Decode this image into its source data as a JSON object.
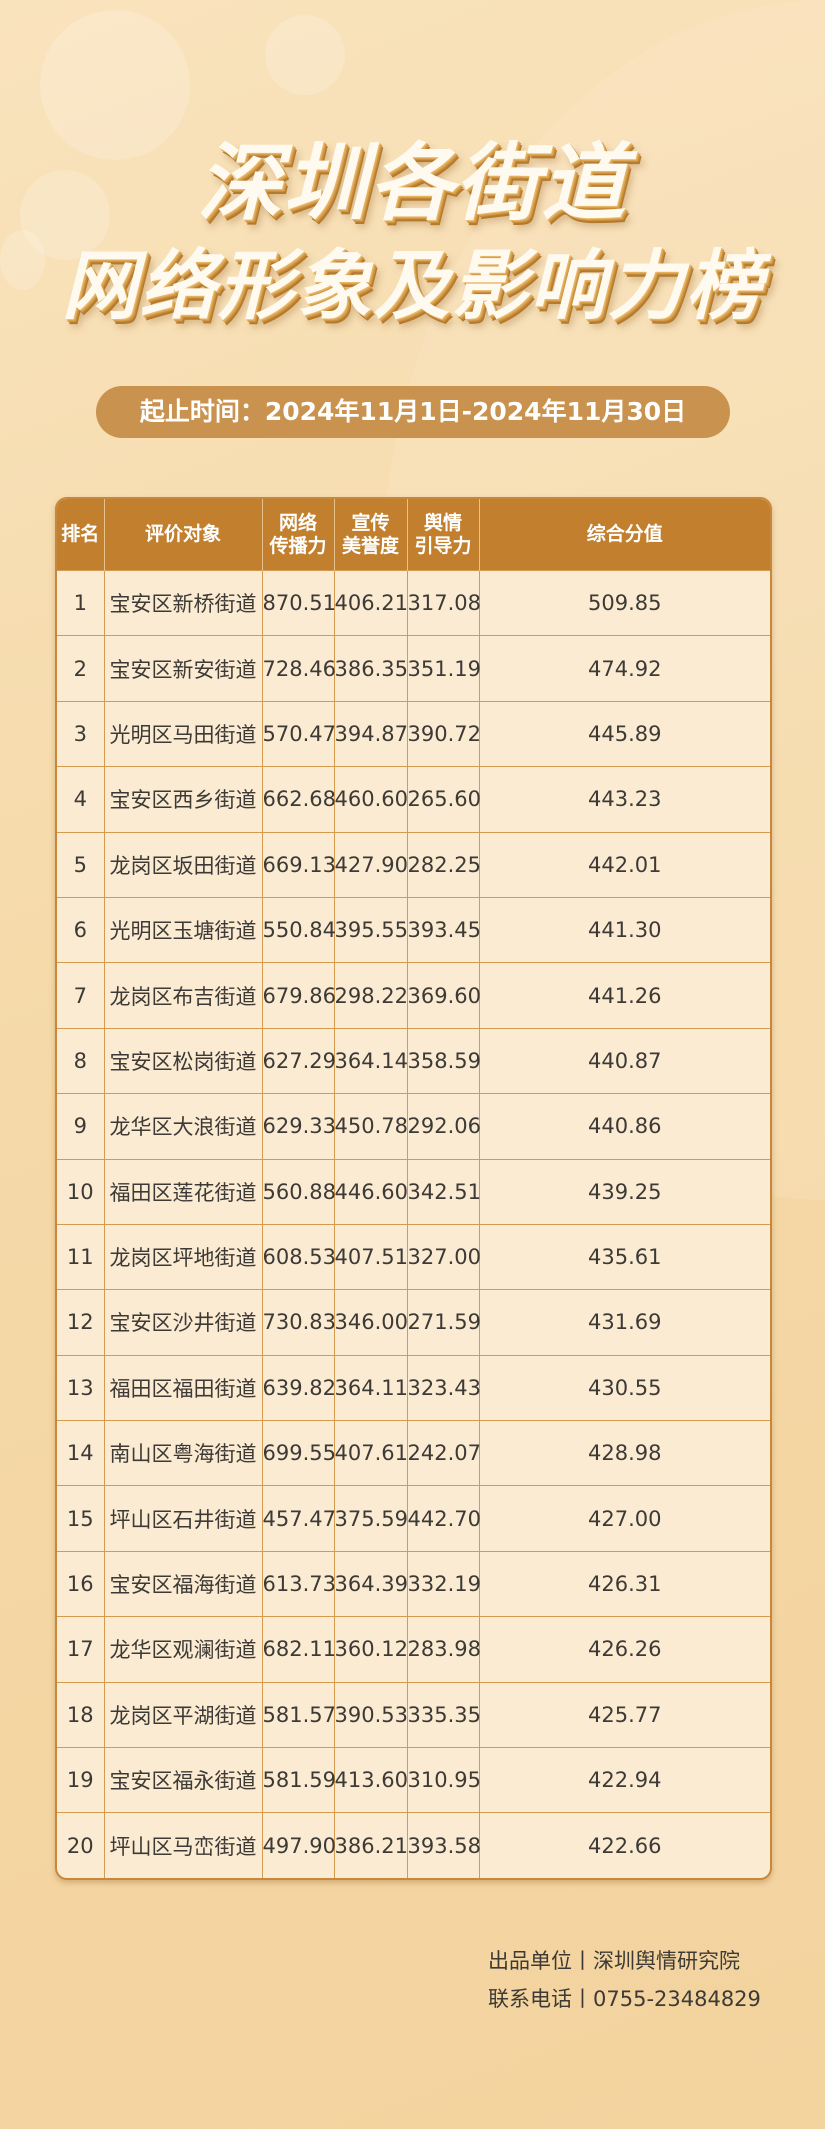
{
  "title": {
    "line1": "深圳各街道",
    "line2": "网络形象及影响力榜"
  },
  "period": "起止时间：2024年11月1日-2024年11月30日",
  "table": {
    "headers": [
      "排名",
      "评价对象",
      "网络\n传播力",
      "宣传\n美誉度",
      "舆情\n引导力",
      "综合分值"
    ],
    "rows": [
      [
        "1",
        "宝安区新桥街道",
        "870.51",
        "406.21",
        "317.08",
        "509.85"
      ],
      [
        "2",
        "宝安区新安街道",
        "728.46",
        "386.35",
        "351.19",
        "474.92"
      ],
      [
        "3",
        "光明区马田街道",
        "570.47",
        "394.87",
        "390.72",
        "445.89"
      ],
      [
        "4",
        "宝安区西乡街道",
        "662.68",
        "460.60",
        "265.60",
        "443.23"
      ],
      [
        "5",
        "龙岗区坂田街道",
        "669.13",
        "427.90",
        "282.25",
        "442.01"
      ],
      [
        "6",
        "光明区玉塘街道",
        "550.84",
        "395.55",
        "393.45",
        "441.30"
      ],
      [
        "7",
        "龙岗区布吉街道",
        "679.86",
        "298.22",
        "369.60",
        "441.26"
      ],
      [
        "8",
        "宝安区松岗街道",
        "627.29",
        "364.14",
        "358.59",
        "440.87"
      ],
      [
        "9",
        "龙华区大浪街道",
        "629.33",
        "450.78",
        "292.06",
        "440.86"
      ],
      [
        "10",
        "福田区莲花街道",
        "560.88",
        "446.60",
        "342.51",
        "439.25"
      ],
      [
        "11",
        "龙岗区坪地街道",
        "608.53",
        "407.51",
        "327.00",
        "435.61"
      ],
      [
        "12",
        "宝安区沙井街道",
        "730.83",
        "346.00",
        "271.59",
        "431.69"
      ],
      [
        "13",
        "福田区福田街道",
        "639.82",
        "364.11",
        "323.43",
        "430.55"
      ],
      [
        "14",
        "南山区粤海街道",
        "699.55",
        "407.61",
        "242.07",
        "428.98"
      ],
      [
        "15",
        "坪山区石井街道",
        "457.47",
        "375.59",
        "442.70",
        "427.00"
      ],
      [
        "16",
        "宝安区福海街道",
        "613.73",
        "364.39",
        "332.19",
        "426.31"
      ],
      [
        "17",
        "龙华区观澜街道",
        "682.11",
        "360.12",
        "283.98",
        "426.26"
      ],
      [
        "18",
        "龙岗区平湖街道",
        "581.57",
        "390.53",
        "335.35",
        "425.77"
      ],
      [
        "19",
        "宝安区福永街道",
        "581.59",
        "413.60",
        "310.95",
        "422.94"
      ],
      [
        "20",
        "坪山区马峦街道",
        "497.90",
        "386.21",
        "393.58",
        "422.66"
      ]
    ]
  },
  "footer": {
    "producer": "出品单位丨深圳舆情研究院",
    "phone": "联系电话丨0755-23484829"
  },
  "colors": {
    "header_bg": "#c2802f",
    "pill_bg": "#c9924f",
    "cell_bg": "#fbebd3"
  }
}
